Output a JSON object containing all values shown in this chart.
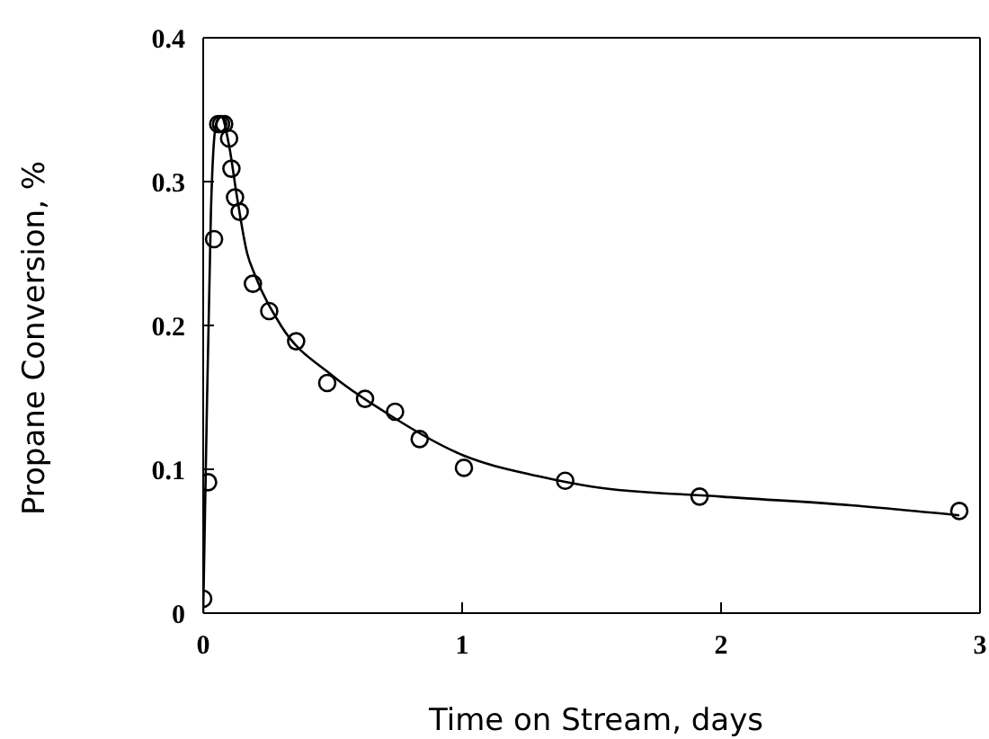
{
  "chart_data": {
    "type": "scatter",
    "xlabel": "Time on Stream, days",
    "ylabel": "Propane Conversion, %",
    "xlim": [
      0,
      3
    ],
    "xticks": [
      0,
      1,
      2,
      3
    ],
    "ylim": [
      0,
      0.4
    ],
    "yticks": [
      0,
      0.1,
      0.2,
      0.3,
      0.4
    ],
    "grid": false,
    "legend": false,
    "marker": "circle",
    "series": [
      {
        "color": "#000000",
        "x": [
          0,
          0.019,
          0.042,
          0.058,
          0.069,
          0.081,
          0.1,
          0.109,
          0.123,
          0.141,
          0.192,
          0.255,
          0.359,
          0.479,
          0.625,
          0.741,
          0.836,
          1.007,
          1.398,
          1.917,
          2.92
        ],
        "values": [
          0.01,
          0.091,
          0.26,
          0.34,
          0.34,
          0.34,
          0.33,
          0.309,
          0.289,
          0.279,
          0.229,
          0.21,
          0.189,
          0.16,
          0.149,
          0.14,
          0.121,
          0.101,
          0.092,
          0.081,
          0.071
        ]
      },
      {
        "type": "line",
        "color": "#000000",
        "marker": "none",
        "line_style": "solid",
        "x": [
          0,
          0.01,
          0.03,
          0.05,
          0.07,
          0.1,
          0.13,
          0.17,
          0.2,
          0.3,
          0.5,
          0.7,
          1.0,
          1.3,
          1.5,
          2.0,
          2.5,
          2.92
        ],
        "values": [
          0,
          0.1,
          0.28,
          0.34,
          0.345,
          0.325,
          0.29,
          0.25,
          0.235,
          0.2,
          0.165,
          0.14,
          0.11,
          0.095,
          0.088,
          0.081,
          0.075,
          0.068
        ]
      }
    ]
  }
}
